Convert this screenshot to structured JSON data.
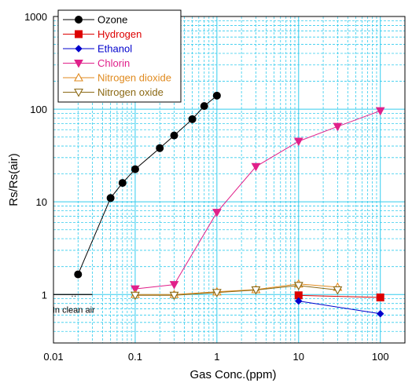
{
  "chart_data": {
    "type": "line",
    "xlabel": "Gas Conc.(ppm)",
    "ylabel": "Rs/Rs(air)",
    "xscale": "log",
    "yscale": "log",
    "xlim": [
      0.01,
      200
    ],
    "ylim": [
      0.3,
      1000
    ],
    "x_ticks": [
      "0.01",
      "0.1",
      "1",
      "10",
      "100"
    ],
    "y_ticks": [
      "1",
      "10",
      "100",
      "1000"
    ],
    "grid": true,
    "legend_position": "top-left",
    "series": [
      {
        "name": "Ozone",
        "color": "#000000",
        "marker": "circle",
        "x": [
          0.02,
          0.05,
          0.07,
          0.1,
          0.2,
          0.3,
          0.5,
          0.7,
          1.0
        ],
        "y": [
          1.65,
          11,
          16,
          22.5,
          38,
          52,
          78,
          108,
          140
        ]
      },
      {
        "name": "Hydrogen",
        "color": "#dd0000",
        "marker": "square",
        "x": [
          10,
          100
        ],
        "y": [
          0.98,
          0.93
        ]
      },
      {
        "name": "Ethanol",
        "color": "#0000cc",
        "marker": "diamond",
        "x": [
          10,
          100
        ],
        "y": [
          0.85,
          0.62
        ]
      },
      {
        "name": "Chlorin",
        "color": "#e0208a",
        "marker": "triangle-down-filled",
        "x": [
          0.1,
          0.3,
          1.0,
          3.0,
          10,
          30,
          100
        ],
        "y": [
          1.15,
          1.28,
          7.7,
          24,
          45,
          65,
          96
        ]
      },
      {
        "name": "Nitrogen dioxide",
        "color": "#e08a1e",
        "marker": "triangle-up-open",
        "x": [
          0.1,
          0.3,
          1.0,
          3.0,
          10,
          30
        ],
        "y": [
          1.0,
          1.0,
          1.07,
          1.13,
          1.3,
          1.2
        ]
      },
      {
        "name": "Nitrogen oxide",
        "color": "#8b6914",
        "marker": "triangle-down-open",
        "x": [
          0.1,
          0.3,
          1.0,
          3.0,
          10,
          30
        ],
        "y": [
          0.98,
          0.98,
          1.05,
          1.12,
          1.25,
          1.12
        ]
      }
    ],
    "annotations": [
      {
        "text": "In clean air",
        "y": 1.0,
        "x_range": [
          0.01,
          0.03
        ],
        "marker_label": "··"
      }
    ]
  }
}
